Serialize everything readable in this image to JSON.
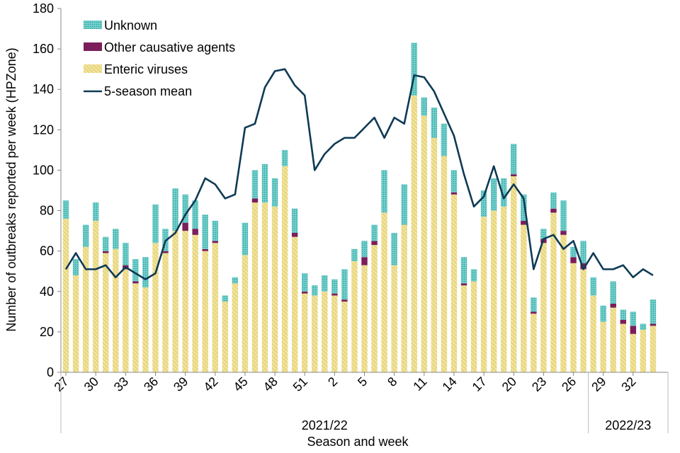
{
  "chart_data": {
    "type": "bar",
    "stacked": true,
    "xlabel": "Season and week",
    "ylabel": "Number of outbreaks reported per week (HPZone)",
    "ylim": [
      0,
      180
    ],
    "yticks": [
      0,
      20,
      40,
      60,
      80,
      100,
      120,
      140,
      160,
      180
    ],
    "grid": false,
    "legend_position": "top-left",
    "x_tick_labels": [
      "27",
      "30",
      "33",
      "36",
      "39",
      "42",
      "45",
      "48",
      "51",
      "2",
      "5",
      "8",
      "11",
      "14",
      "17",
      "20",
      "23",
      "26",
      "29",
      "32"
    ],
    "seasons": [
      {
        "label": "2021/22",
        "start_index": 0,
        "end_index": 52
      },
      {
        "label": "2022/23",
        "start_index": 53,
        "end_index": 60
      }
    ],
    "categories": [
      "27",
      "28",
      "29",
      "30",
      "31",
      "32",
      "33",
      "34",
      "35",
      "36",
      "37",
      "38",
      "39",
      "40",
      "41",
      "42",
      "43",
      "44",
      "45",
      "46",
      "47",
      "48",
      "49",
      "50",
      "51",
      "52",
      "1",
      "2",
      "3",
      "4",
      "5",
      "6",
      "7",
      "8",
      "9",
      "10",
      "11",
      "12",
      "13",
      "14",
      "15",
      "16",
      "17",
      "18",
      "19",
      "20",
      "21",
      "22",
      "23",
      "24",
      "25",
      "26",
      "27",
      "28",
      "29",
      "30",
      "31",
      "32",
      "33",
      "34",
      "35"
    ],
    "series": [
      {
        "name": "Enteric viruses",
        "color": "#e9d87a",
        "pattern": "hatched",
        "values": [
          76,
          48,
          62,
          75,
          59,
          61,
          51,
          44,
          42,
          64,
          59,
          70,
          70,
          68,
          60,
          64,
          35,
          44,
          58,
          84,
          84,
          82,
          102,
          67,
          39,
          38,
          40,
          38,
          35,
          55,
          53,
          63,
          79,
          53,
          73,
          137,
          127,
          116,
          107,
          88,
          43,
          45,
          77,
          80,
          82,
          97,
          73,
          29,
          64,
          79,
          68,
          54,
          51,
          38,
          25,
          32,
          24,
          19,
          21,
          23,
          0
        ],
        "color_fill": "#e9d87a"
      },
      {
        "name": "Other causative agents",
        "color": "#7b1e5a",
        "values": [
          0,
          0,
          0,
          0,
          1,
          0,
          2,
          1,
          0,
          0,
          1,
          0,
          4,
          3,
          1,
          1,
          0,
          0,
          0,
          2,
          0,
          0,
          0,
          2,
          1,
          0,
          0,
          1,
          1,
          0,
          4,
          2,
          0,
          0,
          0,
          0,
          0,
          0,
          0,
          1,
          1,
          0,
          0,
          0,
          0,
          1,
          2,
          1,
          2,
          2,
          2,
          3,
          3,
          0,
          0,
          2,
          2,
          4,
          0,
          1,
          0
        ]
      },
      {
        "name": "Unknown",
        "color": "#4fc1bd",
        "pattern": "dotted",
        "values": [
          9,
          8,
          11,
          9,
          7,
          10,
          11,
          11,
          15,
          19,
          11,
          21,
          14,
          14,
          17,
          10,
          3,
          3,
          16,
          14,
          19,
          14,
          8,
          12,
          9,
          5,
          8,
          7,
          15,
          6,
          8,
          8,
          21,
          16,
          20,
          26,
          9,
          15,
          16,
          11,
          13,
          6,
          13,
          16,
          14,
          15,
          13,
          7,
          5,
          8,
          15,
          5,
          11,
          9,
          8,
          11,
          5,
          7,
          3,
          12,
          0
        ]
      }
    ],
    "line_series": {
      "name": "5-season mean",
      "color": "#0e3a55",
      "values": [
        51,
        59,
        51,
        51,
        53,
        47,
        52,
        49,
        46,
        49,
        65,
        69,
        78,
        85,
        96,
        93,
        86,
        88,
        121,
        123,
        141,
        149,
        150,
        142,
        137,
        100,
        108,
        113,
        116,
        116,
        121,
        126,
        116,
        126,
        123,
        147,
        146,
        139,
        128,
        117,
        98,
        82,
        87,
        102,
        86,
        93,
        86,
        51,
        66,
        68,
        61,
        65,
        51,
        59,
        51,
        51,
        53,
        47,
        51,
        48,
        null
      ]
    }
  }
}
